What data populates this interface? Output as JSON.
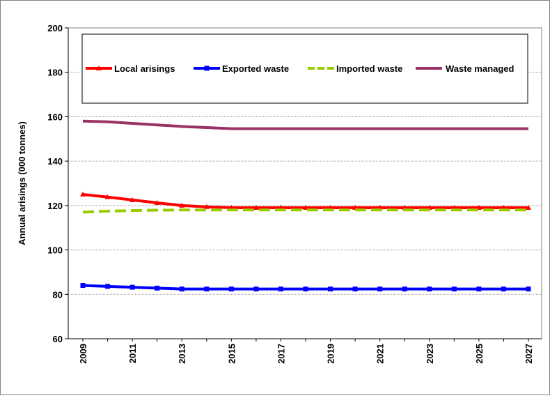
{
  "chart_data": {
    "type": "line",
    "title": "",
    "xlabel": "",
    "ylabel": "Annual arisings (000 tonnes)",
    "ylim": [
      60,
      200
    ],
    "yticks": [
      60,
      80,
      100,
      120,
      140,
      160,
      180,
      200
    ],
    "x": [
      2009,
      2010,
      2011,
      2012,
      2013,
      2014,
      2015,
      2016,
      2017,
      2018,
      2019,
      2020,
      2021,
      2022,
      2023,
      2024,
      2025,
      2026,
      2027
    ],
    "xtick_labels": [
      "2009",
      "2011",
      "2013",
      "2015",
      "2017",
      "2019",
      "2021",
      "2023",
      "2025",
      "2027"
    ],
    "grid": "horizontal",
    "legend": "top, inside plot",
    "series": [
      {
        "name": "Local arisings",
        "color": "#FF0000",
        "marker": "triangle",
        "dash": "solid",
        "values": [
          125,
          123.8,
          122.5,
          121.2,
          120,
          119.4,
          119,
          119,
          119,
          119,
          119,
          119,
          119,
          119,
          119,
          119,
          119,
          119,
          119
        ]
      },
      {
        "name": "Exported waste",
        "color": "#0000FF",
        "marker": "square",
        "dash": "solid",
        "values": [
          84,
          83.6,
          83.2,
          82.8,
          82.4,
          82.4,
          82.4,
          82.4,
          82.4,
          82.4,
          82.4,
          82.4,
          82.4,
          82.4,
          82.4,
          82.4,
          82.4,
          82.4,
          82.4
        ]
      },
      {
        "name": "Imported waste",
        "color": "#99CC00",
        "marker": "none",
        "dash": "dashed",
        "values": [
          117,
          117.5,
          117.7,
          117.9,
          118,
          118,
          118,
          118,
          118,
          118,
          118,
          118,
          118,
          118,
          118,
          118,
          118,
          118,
          118
        ]
      },
      {
        "name": "Waste managed",
        "color": "#993366",
        "marker": "none",
        "dash": "solid",
        "values": [
          158,
          157.7,
          157,
          156.3,
          155.6,
          155.1,
          154.6,
          154.6,
          154.6,
          154.6,
          154.6,
          154.6,
          154.6,
          154.6,
          154.6,
          154.6,
          154.6,
          154.6,
          154.6
        ]
      }
    ]
  }
}
